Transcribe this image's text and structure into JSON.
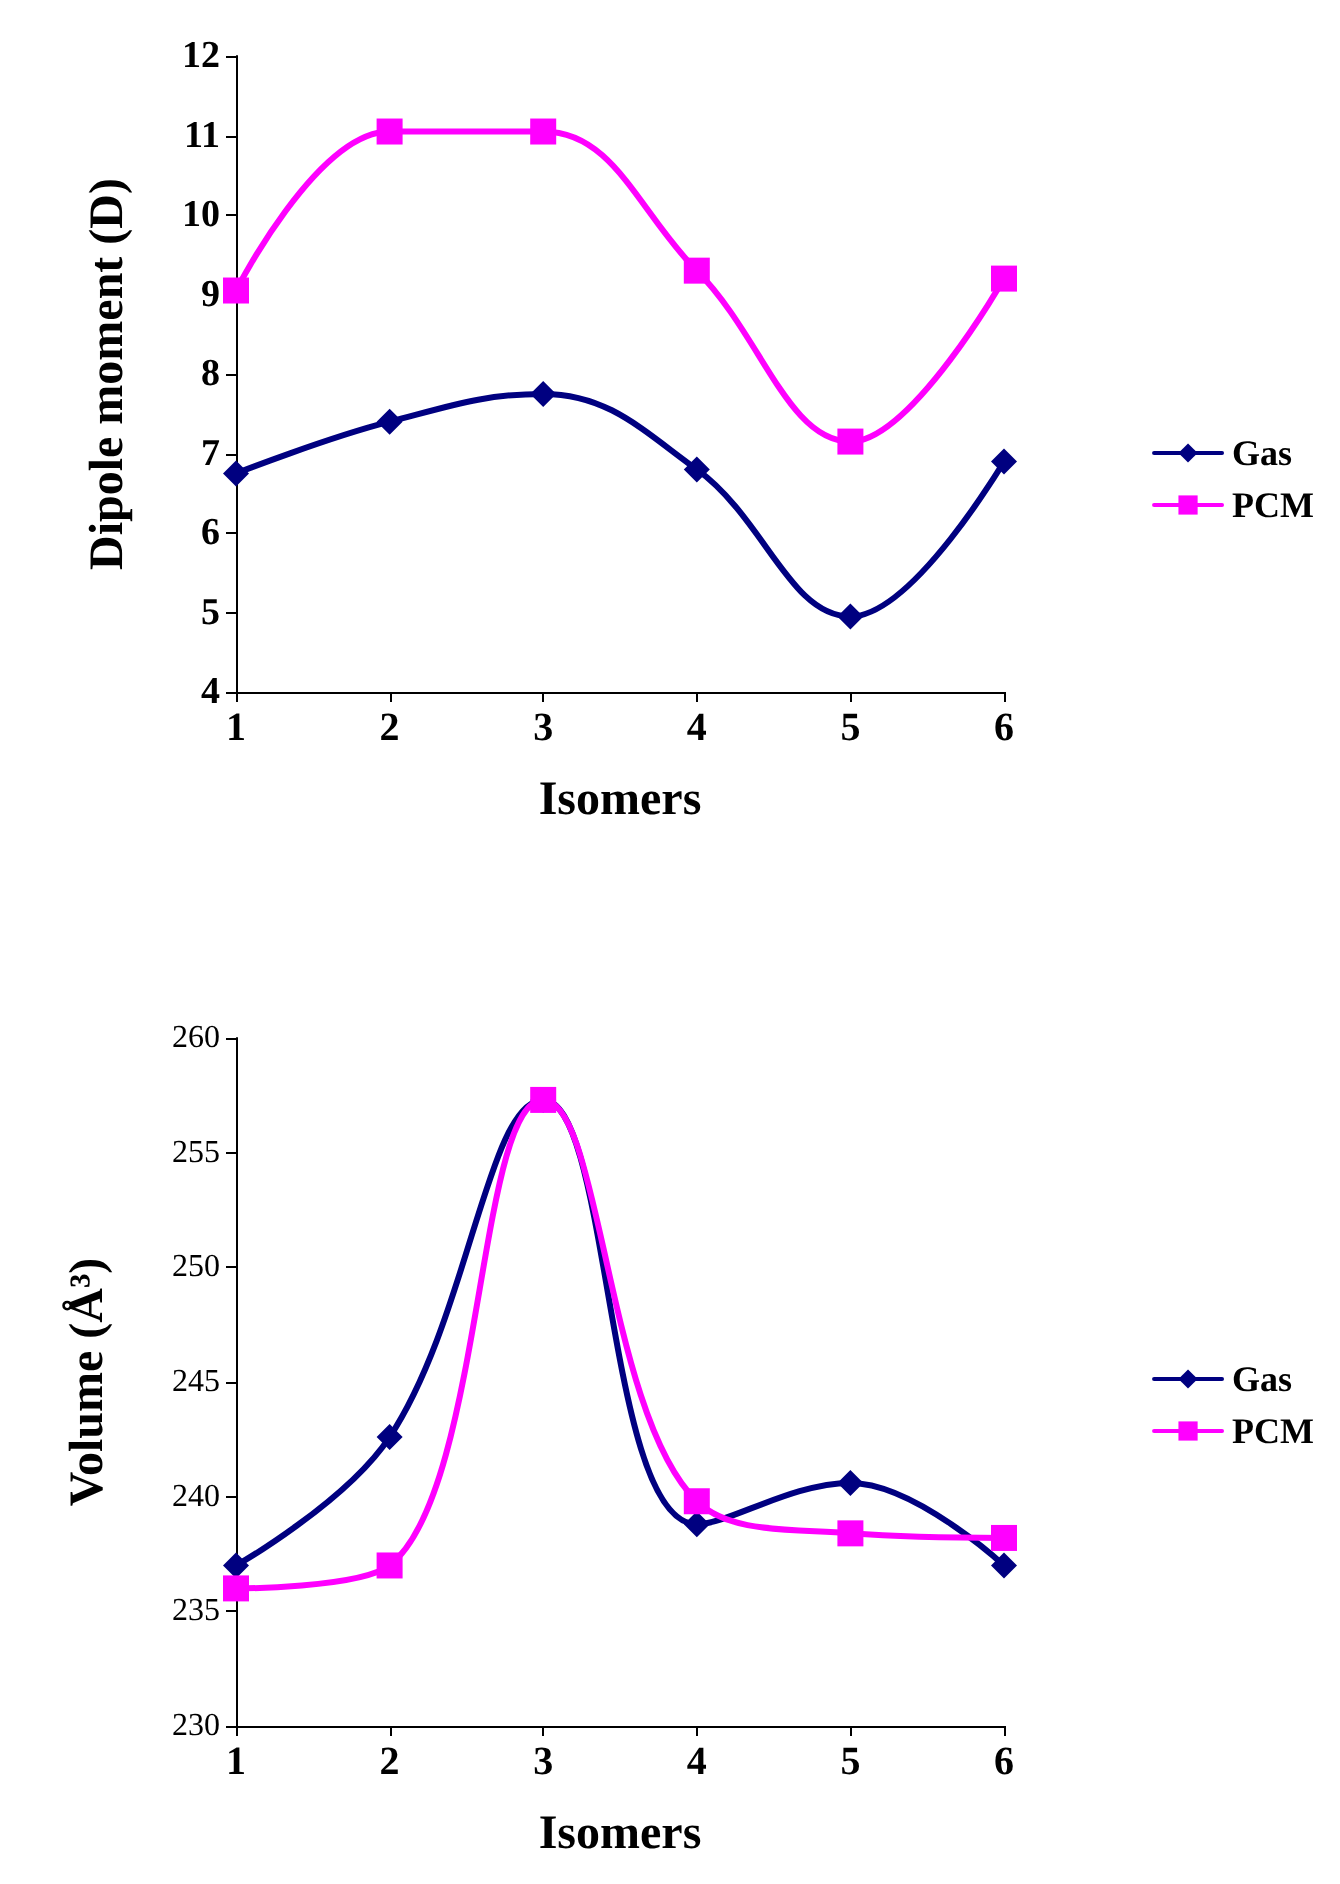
{
  "chart_data": [
    {
      "type": "line",
      "categories": [
        "1",
        "2",
        "3",
        "4",
        "5",
        "6"
      ],
      "xlabel": "Isomers",
      "ylabel": "Dipole moment (D)",
      "ylim": [
        4,
        12
      ],
      "yticks": [
        4,
        5,
        6,
        7,
        8,
        9,
        10,
        11,
        12
      ],
      "grid": false,
      "legend": "right",
      "line_style": "solid",
      "series": [
        {
          "name": "Gas",
          "color": "#000080",
          "marker": "diamond",
          "values": [
            6.75,
            7.4,
            7.75,
            6.8,
            4.95,
            6.9
          ]
        },
        {
          "name": "PCM",
          "color": "#ff00ff",
          "marker": "square",
          "values": [
            9.05,
            11.05,
            11.05,
            9.3,
            7.15,
            9.2
          ]
        }
      ]
    },
    {
      "type": "line",
      "categories": [
        "1",
        "2",
        "3",
        "4",
        "5",
        "6"
      ],
      "xlabel": "Isomers",
      "ylabel": "Volume (Å³)",
      "ylim": [
        230,
        260
      ],
      "yticks": [
        230,
        235,
        240,
        245,
        250,
        255,
        260
      ],
      "grid": false,
      "legend": "right",
      "line_style": "solid",
      "series": [
        {
          "name": "Gas",
          "color": "#000080",
          "marker": "diamond",
          "values": [
            237,
            242.6,
            257.3,
            238.8,
            240.6,
            237
          ]
        },
        {
          "name": "PCM",
          "color": "#ff00ff",
          "marker": "square",
          "values": [
            236,
            237,
            257.3,
            239.8,
            238.4,
            238.2
          ]
        }
      ]
    }
  ]
}
